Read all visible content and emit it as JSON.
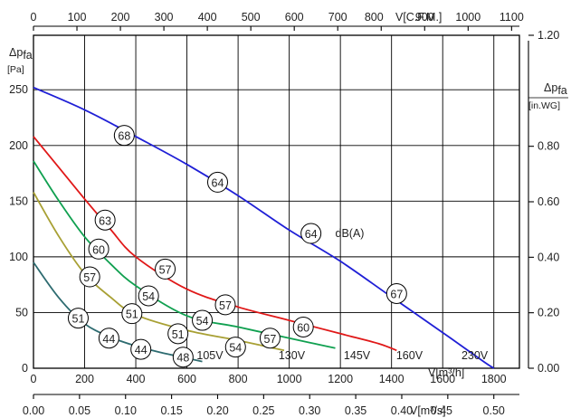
{
  "chart_data": {
    "type": "line",
    "axes": {
      "x_bottom_m3h": {
        "label": "V[m³/h]",
        "ticks": [
          0,
          200,
          400,
          600,
          800,
          1000,
          1200,
          1400,
          1600,
          1800
        ],
        "range": [
          0,
          1900
        ]
      },
      "x_top_cfm": {
        "label": "V[C.F.M.]",
        "ticks": [
          0,
          100,
          200,
          300,
          400,
          500,
          600,
          700,
          800,
          900,
          1000,
          1100
        ],
        "range": [
          0,
          1118
        ]
      },
      "x_bottom2_m3s": {
        "label": "V[m³/s]",
        "ticks": [
          "0.00",
          "0.05",
          "0.10",
          "0.15",
          "0.20",
          "0.25",
          "0.30",
          "0.35",
          "0.40",
          "0.45",
          "0.50"
        ],
        "range": [
          0,
          0.5278
        ]
      },
      "y_left_pa": {
        "label_main": "Δp",
        "label_sub": "fa",
        "unit": "[Pa]",
        "ticks": [
          0,
          50,
          100,
          150,
          200,
          250
        ],
        "range": [
          0,
          298.9
        ]
      },
      "y_right_inwg": {
        "label_main": "Δp",
        "label_sub": "fa",
        "unit": "[in.WG]",
        "ticks": [
          "0.00",
          "0.20",
          "0.40",
          "0.60",
          "0.80",
          "1.20"
        ],
        "range": [
          0,
          1.2
        ]
      }
    },
    "grid": true,
    "series": [
      {
        "name": "230V",
        "color": "#1f1fd6",
        "label_at": [
          1725,
          5
        ],
        "x": [
          0,
          200,
          400,
          600,
          800,
          1000,
          1200,
          1400,
          1600,
          1760,
          1800
        ],
        "y": [
          252,
          232,
          208,
          183,
          155,
          124,
          96,
          64,
          32,
          6,
          0
        ]
      },
      {
        "name": "160V",
        "color": "#e01818",
        "label_at": [
          1470,
          5
        ],
        "x": [
          0,
          100,
          200,
          300,
          400,
          600,
          800,
          1000,
          1200,
          1350,
          1420
        ],
        "y": [
          208,
          180,
          152,
          125,
          100,
          71,
          55,
          43,
          31,
          22,
          16
        ]
      },
      {
        "name": "145V",
        "color": "#10a050",
        "label_at": [
          1265,
          5
        ],
        "x": [
          0,
          100,
          200,
          300,
          400,
          600,
          800,
          1000,
          1100,
          1180
        ],
        "y": [
          186,
          150,
          118,
          94,
          74,
          47,
          37,
          27,
          22,
          18
        ]
      },
      {
        "name": "130V",
        "color": "#a8a034",
        "label_at": [
          1010,
          5
        ],
        "x": [
          0,
          100,
          200,
          300,
          400,
          600,
          800,
          900,
          980
        ],
        "y": [
          158,
          118,
          85,
          64,
          48,
          34,
          25,
          20,
          16
        ]
      },
      {
        "name": "105V",
        "color": "#2d6b70",
        "label_at": [
          690,
          5
        ],
        "x": [
          0,
          100,
          200,
          300,
          400,
          500,
          600,
          660
        ],
        "y": [
          95,
          63,
          40,
          28,
          20,
          14,
          9,
          6
        ]
      }
    ],
    "db_labels": [
      {
        "text": "68",
        "x": 355,
        "y": 209
      },
      {
        "text": "64",
        "x": 720,
        "y": 167
      },
      {
        "text": "64",
        "x": 1085,
        "y": 121
      },
      {
        "text": "67",
        "x": 1420,
        "y": 67
      },
      {
        "text": "63",
        "x": 280,
        "y": 133
      },
      {
        "text": "57",
        "x": 515,
        "y": 89
      },
      {
        "text": "57",
        "x": 750,
        "y": 57
      },
      {
        "text": "60",
        "x": 1055,
        "y": 37
      },
      {
        "text": "60",
        "x": 255,
        "y": 107
      },
      {
        "text": "54",
        "x": 450,
        "y": 65
      },
      {
        "text": "54",
        "x": 660,
        "y": 43
      },
      {
        "text": "57",
        "x": 925,
        "y": 27
      },
      {
        "text": "57",
        "x": 220,
        "y": 82
      },
      {
        "text": "51",
        "x": 385,
        "y": 49
      },
      {
        "text": "51",
        "x": 565,
        "y": 31
      },
      {
        "text": "54",
        "x": 790,
        "y": 19
      },
      {
        "text": "51",
        "x": 175,
        "y": 45
      },
      {
        "text": "44",
        "x": 295,
        "y": 27
      },
      {
        "text": "44",
        "x": 420,
        "y": 17
      },
      {
        "text": "48",
        "x": 585,
        "y": 10
      }
    ],
    "annotation": {
      "text": "dB(A)",
      "x": 1180,
      "y": 121
    }
  }
}
